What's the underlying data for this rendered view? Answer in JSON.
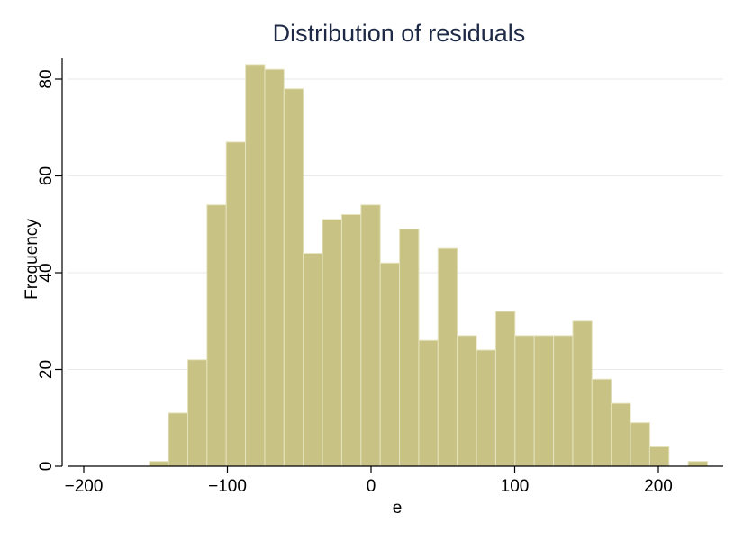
{
  "chart_data": {
    "type": "bar",
    "title": "Distribution of residuals",
    "xlabel": "e",
    "ylabel": "Frequency",
    "xlim": [
      -212,
      240
    ],
    "ylim": [
      0,
      85
    ],
    "x_ticks": [
      -200,
      -100,
      0,
      100,
      200
    ],
    "x_tick_labels": [
      "−200",
      "−100",
      "0",
      "100",
      "200"
    ],
    "y_ticks": [
      0,
      20,
      40,
      60,
      80
    ],
    "y_tick_labels": [
      "0",
      "20",
      "40",
      "60",
      "80"
    ],
    "grid": "horizontal",
    "bin_width": 13.4,
    "bins": [
      {
        "x0": -154.4,
        "value": 1
      },
      {
        "x0": -141.0,
        "value": 11
      },
      {
        "x0": -127.6,
        "value": 22
      },
      {
        "x0": -114.2,
        "value": 54
      },
      {
        "x0": -100.8,
        "value": 67
      },
      {
        "x0": -87.4,
        "value": 83
      },
      {
        "x0": -74.0,
        "value": 82
      },
      {
        "x0": -60.6,
        "value": 78
      },
      {
        "x0": -47.2,
        "value": 44
      },
      {
        "x0": -33.8,
        "value": 51
      },
      {
        "x0": -20.4,
        "value": 52
      },
      {
        "x0": -7.0,
        "value": 54
      },
      {
        "x0": 6.4,
        "value": 42
      },
      {
        "x0": 19.8,
        "value": 49
      },
      {
        "x0": 33.2,
        "value": 26
      },
      {
        "x0": 46.6,
        "value": 45
      },
      {
        "x0": 60.0,
        "value": 27
      },
      {
        "x0": 73.4,
        "value": 24
      },
      {
        "x0": 86.8,
        "value": 32
      },
      {
        "x0": 100.2,
        "value": 27
      },
      {
        "x0": 113.6,
        "value": 27
      },
      {
        "x0": 127.0,
        "value": 27
      },
      {
        "x0": 140.4,
        "value": 30
      },
      {
        "x0": 153.8,
        "value": 18
      },
      {
        "x0": 167.2,
        "value": 13
      },
      {
        "x0": 180.6,
        "value": 9
      },
      {
        "x0": 194.0,
        "value": 4
      },
      {
        "x0": 207.4,
        "value": 0
      },
      {
        "x0": 220.8,
        "value": 1
      }
    ],
    "colors": {
      "bar_fill": "#c8c384",
      "bar_stroke": "#e6e3bf",
      "title": "#1e2a45"
    }
  }
}
